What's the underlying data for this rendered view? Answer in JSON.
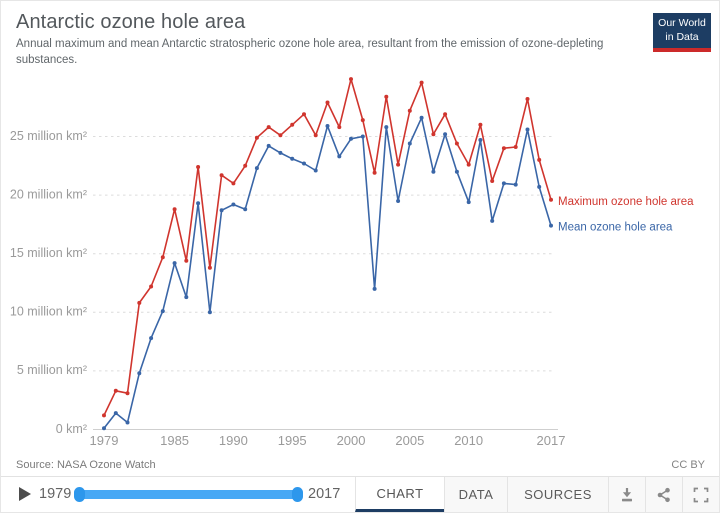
{
  "header": {
    "title": "Antarctic ozone hole area",
    "subtitle": "Annual maximum and mean Antarctic stratospheric ozone hole area, resultant from the emission of ozone-depleting substances.",
    "logo": {
      "line1": "Our World",
      "line2": "in Data",
      "bg_color": "#1d3d63",
      "stripe_color": "#cc2a2a"
    }
  },
  "chart_data": {
    "type": "line",
    "title": "Antarctic ozone hole area",
    "xlabel": "",
    "ylabel": "",
    "ylim": [
      0,
      30
    ],
    "grid": true,
    "legend_position": "right-of-line-ends",
    "x": [
      1979,
      1980,
      1981,
      1982,
      1983,
      1984,
      1985,
      1986,
      1987,
      1988,
      1989,
      1990,
      1991,
      1992,
      1993,
      1994,
      1995,
      1996,
      1997,
      1998,
      1999,
      2000,
      2001,
      2002,
      2003,
      2004,
      2005,
      2006,
      2007,
      2008,
      2009,
      2010,
      2011,
      2012,
      2013,
      2014,
      2015,
      2016,
      2017
    ],
    "series": [
      {
        "name": "Maximum ozone hole area",
        "color": "#d0352e",
        "values": [
          1.2,
          3.3,
          3.1,
          10.8,
          12.2,
          14.7,
          18.8,
          14.4,
          22.4,
          13.8,
          21.7,
          21.0,
          22.5,
          24.9,
          25.8,
          25.1,
          26.0,
          26.9,
          25.1,
          27.9,
          25.8,
          29.9,
          26.4,
          21.9,
          28.4,
          22.6,
          27.2,
          29.6,
          25.2,
          26.9,
          24.4,
          22.6,
          26.0,
          21.2,
          24.0,
          24.1,
          28.2,
          23.0,
          19.6
        ]
      },
      {
        "name": "Mean ozone hole area",
        "color": "#3a66a7",
        "values": [
          0.1,
          1.4,
          0.6,
          4.8,
          7.8,
          10.1,
          14.2,
          11.3,
          19.3,
          10.0,
          18.7,
          19.2,
          18.8,
          22.3,
          24.2,
          23.6,
          23.1,
          22.7,
          22.1,
          25.9,
          23.3,
          24.8,
          25.0,
          12.0,
          25.8,
          19.5,
          24.4,
          26.6,
          22.0,
          25.2,
          22.0,
          19.4,
          24.7,
          17.8,
          21.0,
          20.9,
          25.6,
          20.7,
          17.4
        ]
      }
    ],
    "yticks": [
      {
        "value": 0,
        "label": "0 km²"
      },
      {
        "value": 5,
        "label": "5 million km²"
      },
      {
        "value": 10,
        "label": "10 million km²"
      },
      {
        "value": 15,
        "label": "15 million km²"
      },
      {
        "value": 20,
        "label": "20 million km²"
      },
      {
        "value": 25,
        "label": "25 million km²"
      }
    ],
    "xticks": [
      "1979",
      "1985",
      "1990",
      "1995",
      "2000",
      "2005",
      "2010",
      "2017"
    ],
    "xtick_years": [
      1979,
      1985,
      1990,
      1995,
      2000,
      2005,
      2010,
      2017
    ]
  },
  "footer": {
    "source": "Source: NASA Ozone Watch",
    "license": "CC BY"
  },
  "controls": {
    "start_year": "1979",
    "end_year": "2017",
    "slider_color": "#47a8f5",
    "tabs": [
      {
        "label": "CHART",
        "active": true
      },
      {
        "label": "DATA",
        "active": false
      },
      {
        "label": "SOURCES",
        "active": false
      }
    ],
    "icons": [
      "download-icon",
      "share-icon",
      "fullscreen-icon"
    ]
  }
}
